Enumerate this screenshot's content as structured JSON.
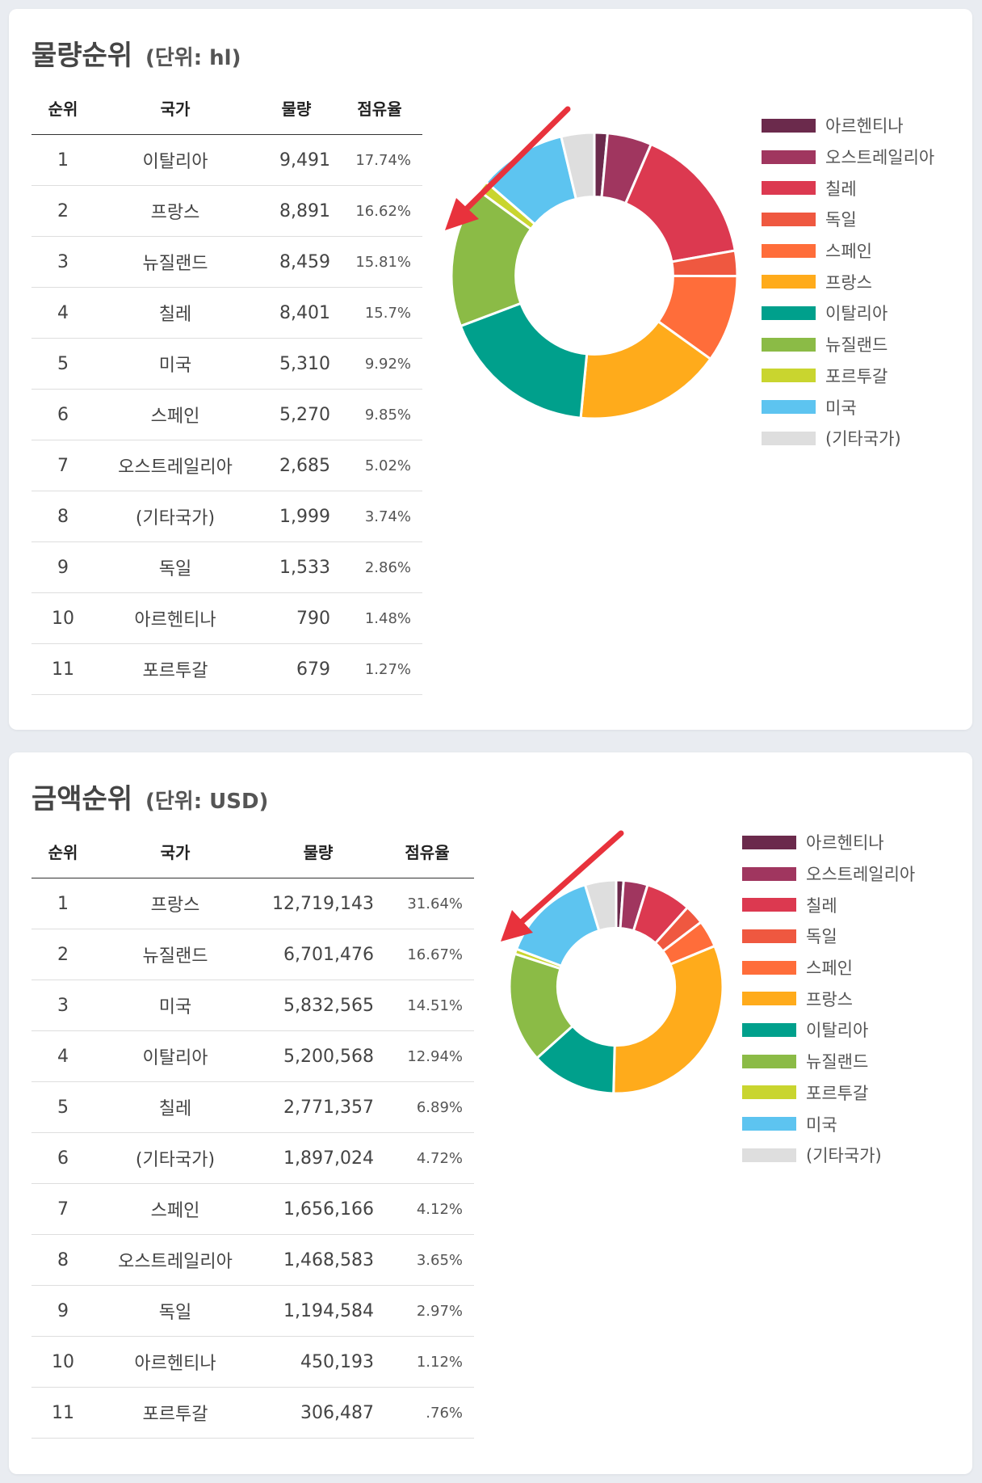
{
  "chart_data": [
    {
      "type": "pie",
      "title": "물량순위",
      "unit": "(단위: hl)",
      "columns": [
        "순위",
        "국가",
        "물량",
        "점유율"
      ],
      "rows": [
        {
          "rank": "1",
          "country": "이탈리아",
          "value": "9,491",
          "share": "17.74%"
        },
        {
          "rank": "2",
          "country": "프랑스",
          "value": "8,891",
          "share": "16.62%"
        },
        {
          "rank": "3",
          "country": "뉴질랜드",
          "value": "8,459",
          "share": "15.81%"
        },
        {
          "rank": "4",
          "country": "칠레",
          "value": "8,401",
          "share": "15.7%"
        },
        {
          "rank": "5",
          "country": "미국",
          "value": "5,310",
          "share": "9.92%"
        },
        {
          "rank": "6",
          "country": "스페인",
          "value": "5,270",
          "share": "9.85%"
        },
        {
          "rank": "7",
          "country": "오스트레일리아",
          "value": "2,685",
          "share": "5.02%"
        },
        {
          "rank": "8",
          "country": "(기타국가)",
          "value": "1,999",
          "share": "3.74%"
        },
        {
          "rank": "9",
          "country": "독일",
          "value": "1,533",
          "share": "2.86%"
        },
        {
          "rank": "10",
          "country": "아르헨티나",
          "value": "790",
          "share": "1.48%"
        },
        {
          "rank": "11",
          "country": "포르투갈",
          "value": "679",
          "share": "1.27%"
        }
      ],
      "categories": [
        "아르헨티나",
        "오스트레일리아",
        "칠레",
        "독일",
        "스페인",
        "프랑스",
        "이탈리아",
        "뉴질랜드",
        "포르투갈",
        "미국",
        "(기타국가)"
      ],
      "values": [
        790,
        2685,
        8401,
        1533,
        5270,
        8891,
        9491,
        8459,
        679,
        5310,
        1999
      ],
      "colors": [
        "#6b2a4c",
        "#a0365f",
        "#dc3950",
        "#ef5840",
        "#ff6d3a",
        "#ffab1b",
        "#00a08c",
        "#8bbb46",
        "#c9d52f",
        "#5dc4f0",
        "#dedede"
      ],
      "legend_position": "right"
    },
    {
      "type": "pie",
      "title": "금액순위",
      "unit": "(단위: USD)",
      "columns": [
        "순위",
        "국가",
        "물량",
        "점유율"
      ],
      "rows": [
        {
          "rank": "1",
          "country": "프랑스",
          "value": "12,719,143",
          "share": "31.64%"
        },
        {
          "rank": "2",
          "country": "뉴질랜드",
          "value": "6,701,476",
          "share": "16.67%"
        },
        {
          "rank": "3",
          "country": "미국",
          "value": "5,832,565",
          "share": "14.51%"
        },
        {
          "rank": "4",
          "country": "이탈리아",
          "value": "5,200,568",
          "share": "12.94%"
        },
        {
          "rank": "5",
          "country": "칠레",
          "value": "2,771,357",
          "share": "6.89%"
        },
        {
          "rank": "6",
          "country": "(기타국가)",
          "value": "1,897,024",
          "share": "4.72%"
        },
        {
          "rank": "7",
          "country": "스페인",
          "value": "1,656,166",
          "share": "4.12%"
        },
        {
          "rank": "8",
          "country": "오스트레일리아",
          "value": "1,468,583",
          "share": "3.65%"
        },
        {
          "rank": "9",
          "country": "독일",
          "value": "1,194,584",
          "share": "2.97%"
        },
        {
          "rank": "10",
          "country": "아르헨티나",
          "value": "450,193",
          "share": "1.12%"
        },
        {
          "rank": "11",
          "country": "포르투갈",
          "value": "306,487",
          "share": ".76%"
        }
      ],
      "categories": [
        "아르헨티나",
        "오스트레일리아",
        "칠레",
        "독일",
        "스페인",
        "프랑스",
        "이탈리아",
        "뉴질랜드",
        "포르투갈",
        "미국",
        "(기타국가)"
      ],
      "values": [
        450193,
        1468583,
        2771357,
        1194584,
        1656166,
        12719143,
        5200568,
        6701476,
        306487,
        5832565,
        1897024
      ],
      "colors": [
        "#6b2a4c",
        "#a0365f",
        "#dc3950",
        "#ef5840",
        "#ff6d3a",
        "#ffab1b",
        "#00a08c",
        "#8bbb46",
        "#c9d52f",
        "#5dc4f0",
        "#dedede"
      ],
      "legend_position": "right"
    }
  ]
}
